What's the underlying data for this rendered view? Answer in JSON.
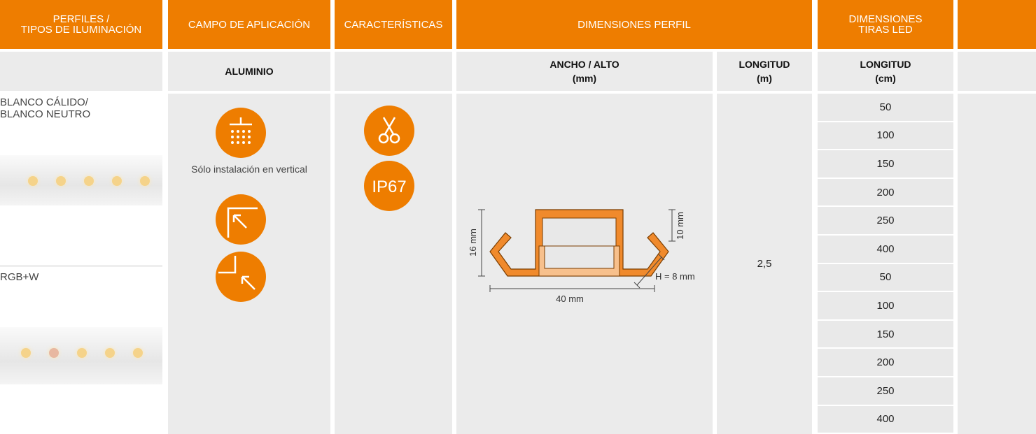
{
  "header": {
    "columns": [
      "PERFILES /\nTIPOS DE ILUMINACIÓN",
      "CAMPO DE APLICACIÓN",
      "CARACTERÍSTICAS",
      "DIMENSIONES PERFIL",
      "DIMENSIONES\nTIRAS LED"
    ]
  },
  "subheader": {
    "material": "ALUMINIO",
    "width_height": "ANCHO / ALTO\n(mm)",
    "profile_length": "LONGITUD\n(m)",
    "strip_length": "LONGITUD\n(cm)"
  },
  "rows": [
    {
      "label": "BLANCO CÁLIDO/\nBLANCO NEUTRO"
    },
    {
      "label": "RGB+W"
    }
  ],
  "application": {
    "note": "Sólo instalación en vertical"
  },
  "features": {
    "protection": "IP67"
  },
  "profile": {
    "height": "16 mm",
    "inner_height": "10 mm",
    "wall": "H = 8 mm",
    "width": "40 mm"
  },
  "profile_length": "2,5",
  "strip_lengths": [
    50,
    100,
    150,
    200,
    250,
    400,
    50,
    100,
    150,
    200,
    250,
    400
  ]
}
